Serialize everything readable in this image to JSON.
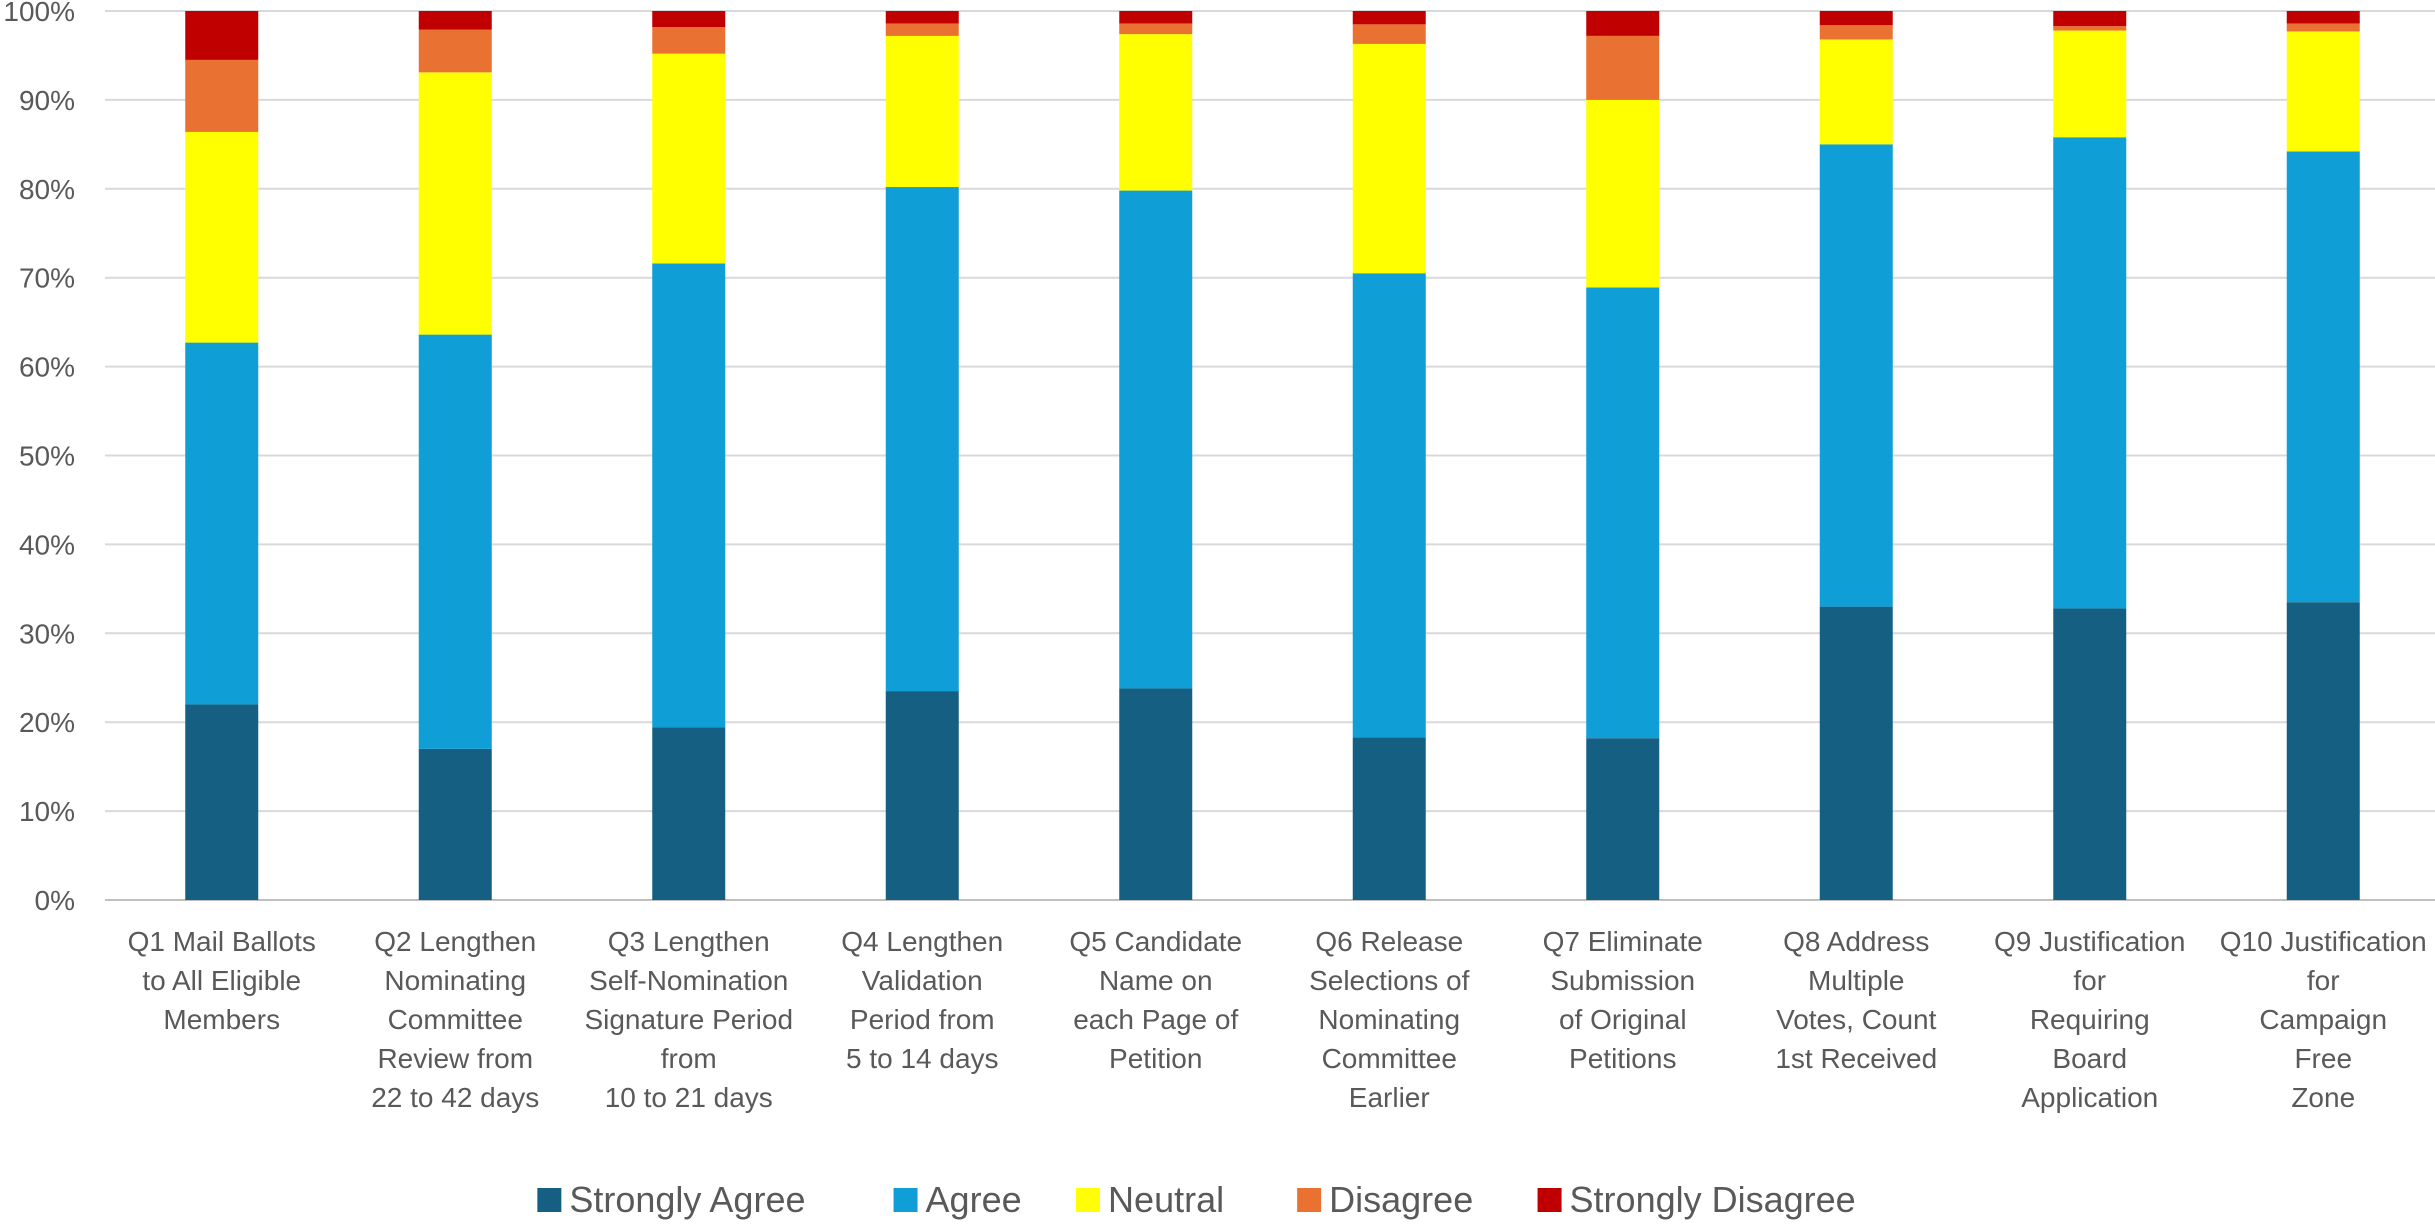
{
  "chart_data": {
    "type": "bar",
    "stacked": true,
    "title": "",
    "xlabel": "",
    "ylabel": "",
    "ylim": [
      0,
      100
    ],
    "y_ticks": [
      "0%",
      "10%",
      "20%",
      "30%",
      "40%",
      "50%",
      "60%",
      "70%",
      "80%",
      "90%",
      "100%"
    ],
    "grid": true,
    "legend_position": "bottom",
    "categories": [
      [
        "Q1 Mail Ballots",
        "to All Eligible",
        "Members"
      ],
      [
        "Q2 Lengthen",
        "Nominating",
        "Committee",
        "Review from",
        "22 to 42 days"
      ],
      [
        "Q3 Lengthen",
        "Self-Nomination",
        "Signature Period",
        "from",
        "10 to 21 days"
      ],
      [
        "Q4 Lengthen",
        "Validation",
        "Period from",
        "5 to 14 days"
      ],
      [
        "Q5 Candidate",
        "Name on",
        "each Page of",
        "Petition"
      ],
      [
        "Q6 Release",
        "Selections of",
        "Nominating",
        "Committee",
        "Earlier"
      ],
      [
        "Q7 Eliminate",
        "Submission",
        "of Original",
        "Petitions"
      ],
      [
        "Q8 Address",
        "Multiple",
        "Votes, Count",
        "1st Received"
      ],
      [
        "Q9 Justification",
        "for",
        "Requiring",
        "Board",
        "Application"
      ],
      [
        "Q10 Justification",
        "for",
        "Campaign",
        "Free",
        "Zone"
      ]
    ],
    "series": [
      {
        "name": "Strongly Agree",
        "color": "#156082",
        "values": [
          22.0,
          17.0,
          19.4,
          23.5,
          23.8,
          18.3,
          18.2,
          33.0,
          32.8,
          33.5
        ]
      },
      {
        "name": "Agree",
        "color": "#0F9ED5",
        "values": [
          40.7,
          46.6,
          52.2,
          56.7,
          56.0,
          52.2,
          50.7,
          52.0,
          53.0,
          50.7
        ]
      },
      {
        "name": "Neutral",
        "color": "#FFFF00",
        "values": [
          23.7,
          29.5,
          23.6,
          17.0,
          17.6,
          25.8,
          21.1,
          11.8,
          12.0,
          13.5
        ]
      },
      {
        "name": "Disagree",
        "color": "#E97132",
        "values": [
          8.1,
          4.8,
          3.0,
          1.4,
          1.2,
          2.2,
          7.2,
          1.6,
          0.5,
          0.9
        ]
      },
      {
        "name": "Strongly Disagree",
        "color": "#C00000",
        "values": [
          5.5,
          2.1,
          1.8,
          1.4,
          1.4,
          1.5,
          2.8,
          1.6,
          1.7,
          1.4
        ]
      }
    ]
  }
}
